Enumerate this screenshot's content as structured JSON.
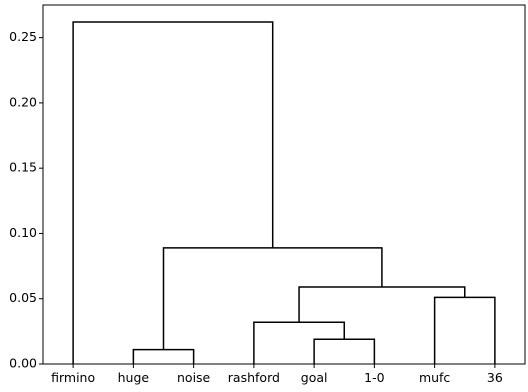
{
  "chart_data": {
    "type": "dendrogram",
    "title": "",
    "xlabel": "",
    "ylabel": "",
    "ylim": [
      0,
      0.275
    ],
    "yticks": [
      0.0,
      0.05,
      0.1,
      0.15,
      0.2,
      0.25
    ],
    "ytick_labels": [
      "0.00",
      "0.05",
      "0.10",
      "0.15",
      "0.20",
      "0.25"
    ],
    "grid": false,
    "line_color": "#000000",
    "leaves": [
      "firmino",
      "huge",
      "noise",
      "rashford",
      "goal",
      "1-0",
      "mufc",
      "36"
    ],
    "merges": [
      {
        "left": "huge",
        "right": "noise",
        "height": 0.011
      },
      {
        "left": "goal",
        "right": "1-0",
        "height": 0.019
      },
      {
        "left": "rashford",
        "right": "goal + 1-0",
        "height": 0.032
      },
      {
        "left": "mufc",
        "right": "36",
        "height": 0.051
      },
      {
        "left": "rashford + goal + 1-0",
        "right": "mufc + 36",
        "height": 0.059
      },
      {
        "left": "huge + noise",
        "right": "rashford + goal + 1-0 + mufc + 36",
        "height": 0.089
      },
      {
        "left": "firmino",
        "right": "huge + noise + rashford + goal + 1-0 + mufc + 36",
        "height": 0.262
      }
    ]
  }
}
